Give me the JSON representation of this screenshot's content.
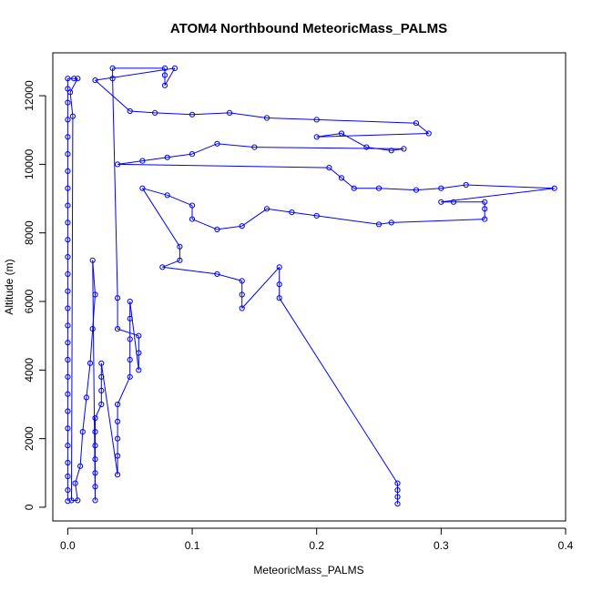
{
  "chart_data": {
    "type": "scatter",
    "title": "ATOM4 Northbound MeteoricMass_PALMS",
    "xlabel": "MeteoricMass_PALMS",
    "ylabel": "Altitude (m)",
    "xlim": [
      -0.012,
      0.4
    ],
    "ylim": [
      -400,
      13250
    ],
    "xticks": [
      0.0,
      0.1,
      0.2,
      0.3,
      0.4
    ],
    "xtick_labels": [
      "0.0",
      "0.1",
      "0.2",
      "0.3",
      "0.4"
    ],
    "yticks": [
      0,
      2000,
      4000,
      6000,
      8000,
      10000,
      12000
    ],
    "ytick_labels": [
      "0",
      "2000",
      "4000",
      "6000",
      "8000",
      "10000",
      "12000"
    ],
    "grid": false,
    "legend": "none",
    "series_color": "#0000ff",
    "marker": "open-circle",
    "connected_by_lines": true,
    "points": [
      {
        "x": 0.0,
        "y": 180
      },
      {
        "x": 0.0,
        "y": 500
      },
      {
        "x": 0.0,
        "y": 900
      },
      {
        "x": 0.0,
        "y": 1300
      },
      {
        "x": 0.0,
        "y": 1800
      },
      {
        "x": 0.0,
        "y": 2300
      },
      {
        "x": 0.0,
        "y": 2800
      },
      {
        "x": 0.0,
        "y": 3300
      },
      {
        "x": 0.0,
        "y": 3800
      },
      {
        "x": 0.0,
        "y": 4300
      },
      {
        "x": 0.0,
        "y": 4800
      },
      {
        "x": 0.0,
        "y": 5300
      },
      {
        "x": 0.0,
        "y": 5800
      },
      {
        "x": 0.0,
        "y": 6300
      },
      {
        "x": 0.0,
        "y": 6800
      },
      {
        "x": 0.0,
        "y": 7300
      },
      {
        "x": 0.0,
        "y": 7800
      },
      {
        "x": 0.0,
        "y": 8300
      },
      {
        "x": 0.0,
        "y": 8800
      },
      {
        "x": 0.0,
        "y": 9300
      },
      {
        "x": 0.0,
        "y": 9800
      },
      {
        "x": 0.0,
        "y": 10300
      },
      {
        "x": 0.0,
        "y": 10800
      },
      {
        "x": 0.0,
        "y": 11300
      },
      {
        "x": 0.0,
        "y": 11800
      },
      {
        "x": 0.0,
        "y": 12200
      },
      {
        "x": 0.0,
        "y": 12500
      },
      {
        "x": 0.005,
        "y": 12500
      },
      {
        "x": 0.008,
        "y": 12500
      },
      {
        "x": 0.002,
        "y": 12100
      },
      {
        "x": 0.004,
        "y": 11400
      },
      {
        "x": 0.003,
        "y": 200
      },
      {
        "x": 0.008,
        "y": 200
      },
      {
        "x": 0.006,
        "y": 700
      },
      {
        "x": 0.01,
        "y": 1200
      },
      {
        "x": 0.012,
        "y": 2200
      },
      {
        "x": 0.015,
        "y": 3200
      },
      {
        "x": 0.018,
        "y": 4200
      },
      {
        "x": 0.02,
        "y": 5200
      },
      {
        "x": 0.022,
        "y": 6200
      },
      {
        "x": 0.02,
        "y": 7200
      },
      {
        "x": 0.022,
        "y": 200
      },
      {
        "x": 0.022,
        "y": 600
      },
      {
        "x": 0.022,
        "y": 1000
      },
      {
        "x": 0.022,
        "y": 1400
      },
      {
        "x": 0.022,
        "y": 1800
      },
      {
        "x": 0.022,
        "y": 2200
      },
      {
        "x": 0.022,
        "y": 2600
      },
      {
        "x": 0.027,
        "y": 3000
      },
      {
        "x": 0.027,
        "y": 3400
      },
      {
        "x": 0.027,
        "y": 3800
      },
      {
        "x": 0.027,
        "y": 4200
      },
      {
        "x": 0.04,
        "y": 950
      },
      {
        "x": 0.04,
        "y": 1500
      },
      {
        "x": 0.04,
        "y": 2000
      },
      {
        "x": 0.04,
        "y": 2500
      },
      {
        "x": 0.04,
        "y": 3000
      },
      {
        "x": 0.05,
        "y": 3800
      },
      {
        "x": 0.05,
        "y": 4300
      },
      {
        "x": 0.05,
        "y": 4900
      },
      {
        "x": 0.05,
        "y": 5500
      },
      {
        "x": 0.05,
        "y": 6000
      },
      {
        "x": 0.057,
        "y": 4000
      },
      {
        "x": 0.057,
        "y": 4500
      },
      {
        "x": 0.057,
        "y": 5000
      },
      {
        "x": 0.04,
        "y": 5200
      },
      {
        "x": 0.04,
        "y": 6100
      },
      {
        "x": 0.036,
        "y": 12500
      },
      {
        "x": 0.036,
        "y": 12800
      },
      {
        "x": 0.078,
        "y": 12800
      },
      {
        "x": 0.078,
        "y": 12600
      },
      {
        "x": 0.078,
        "y": 12300
      },
      {
        "x": 0.086,
        "y": 12800
      },
      {
        "x": 0.022,
        "y": 12450
      },
      {
        "x": 0.05,
        "y": 11550
      },
      {
        "x": 0.07,
        "y": 11500
      },
      {
        "x": 0.1,
        "y": 11450
      },
      {
        "x": 0.13,
        "y": 11500
      },
      {
        "x": 0.16,
        "y": 11350
      },
      {
        "x": 0.2,
        "y": 11300
      },
      {
        "x": 0.28,
        "y": 11200
      },
      {
        "x": 0.29,
        "y": 10900
      },
      {
        "x": 0.2,
        "y": 10800
      },
      {
        "x": 0.22,
        "y": 10900
      },
      {
        "x": 0.24,
        "y": 10500
      },
      {
        "x": 0.26,
        "y": 10400
      },
      {
        "x": 0.27,
        "y": 10450
      },
      {
        "x": 0.15,
        "y": 10500
      },
      {
        "x": 0.12,
        "y": 10600
      },
      {
        "x": 0.1,
        "y": 10300
      },
      {
        "x": 0.08,
        "y": 10200
      },
      {
        "x": 0.06,
        "y": 10100
      },
      {
        "x": 0.04,
        "y": 10000
      },
      {
        "x": 0.21,
        "y": 9900
      },
      {
        "x": 0.22,
        "y": 9600
      },
      {
        "x": 0.23,
        "y": 9300
      },
      {
        "x": 0.25,
        "y": 9300
      },
      {
        "x": 0.28,
        "y": 9250
      },
      {
        "x": 0.3,
        "y": 9300
      },
      {
        "x": 0.32,
        "y": 9400
      },
      {
        "x": 0.391,
        "y": 9300
      },
      {
        "x": 0.3,
        "y": 8900
      },
      {
        "x": 0.31,
        "y": 8900
      },
      {
        "x": 0.335,
        "y": 8900
      },
      {
        "x": 0.335,
        "y": 8700
      },
      {
        "x": 0.335,
        "y": 8400
      },
      {
        "x": 0.26,
        "y": 8300
      },
      {
        "x": 0.25,
        "y": 8250
      },
      {
        "x": 0.2,
        "y": 8500
      },
      {
        "x": 0.18,
        "y": 8600
      },
      {
        "x": 0.16,
        "y": 8700
      },
      {
        "x": 0.14,
        "y": 8200
      },
      {
        "x": 0.12,
        "y": 8100
      },
      {
        "x": 0.1,
        "y": 8400
      },
      {
        "x": 0.1,
        "y": 8800
      },
      {
        "x": 0.08,
        "y": 9100
      },
      {
        "x": 0.06,
        "y": 9300
      },
      {
        "x": 0.09,
        "y": 7600
      },
      {
        "x": 0.09,
        "y": 7200
      },
      {
        "x": 0.076,
        "y": 7000
      },
      {
        "x": 0.12,
        "y": 6800
      },
      {
        "x": 0.14,
        "y": 6600
      },
      {
        "x": 0.14,
        "y": 6200
      },
      {
        "x": 0.14,
        "y": 5800
      },
      {
        "x": 0.17,
        "y": 7000
      },
      {
        "x": 0.17,
        "y": 6500
      },
      {
        "x": 0.17,
        "y": 6100
      },
      {
        "x": 0.265,
        "y": 700
      },
      {
        "x": 0.265,
        "y": 500
      },
      {
        "x": 0.265,
        "y": 300
      },
      {
        "x": 0.265,
        "y": 100
      }
    ]
  }
}
